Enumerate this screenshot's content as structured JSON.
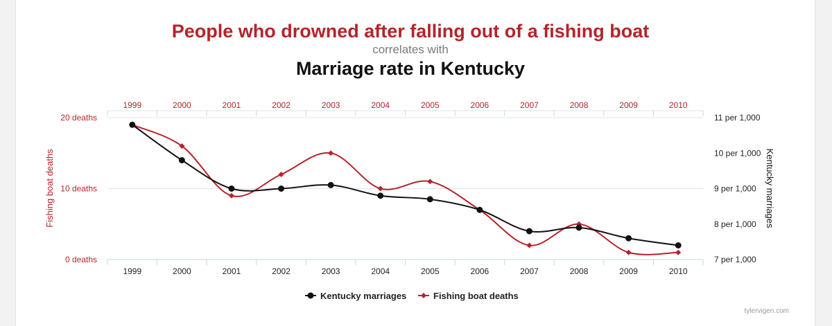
{
  "colors": {
    "fishing": "#b5242b",
    "marriage": "#111111",
    "grid": "#dde6ef"
  },
  "header": {
    "title": "People who drowned after falling out of a fishing boat",
    "connector": "correlates with",
    "subtitle": "Marriage rate in Kentucky"
  },
  "credit": "tylervigen.com",
  "chart_data": {
    "type": "line",
    "x": [
      "1999",
      "2000",
      "2001",
      "2002",
      "2003",
      "2004",
      "2005",
      "2006",
      "2007",
      "2008",
      "2009",
      "2010"
    ],
    "left_axis": {
      "label": "Fishing boat deaths",
      "ticks": [
        "0 deaths",
        "10 deaths",
        "20 deaths"
      ],
      "tick_values": [
        0,
        10,
        20
      ],
      "range": [
        0,
        20
      ]
    },
    "right_axis": {
      "label": "Kentucky marriages",
      "ticks": [
        "7 per 1,000",
        "8 per 1,000",
        "9 per 1,000",
        "10 per 1,000",
        "11 per 1,000"
      ],
      "tick_values": [
        7,
        8,
        9,
        10,
        11
      ],
      "range": [
        7,
        11
      ]
    },
    "series": [
      {
        "name": "Kentucky marriages",
        "axis": "right",
        "color": "#111111",
        "marker": "circle",
        "values": [
          10.8,
          9.8,
          9.0,
          9.0,
          9.1,
          8.8,
          8.7,
          8.4,
          7.8,
          7.9,
          7.6,
          7.4
        ]
      },
      {
        "name": "Fishing boat deaths",
        "axis": "left",
        "color": "#b5242b",
        "marker": "diamond",
        "values": [
          19,
          16,
          9,
          12,
          15,
          10,
          11,
          7,
          2,
          5,
          1,
          1
        ]
      }
    ],
    "grid": true,
    "legend_position": "bottom-center"
  }
}
